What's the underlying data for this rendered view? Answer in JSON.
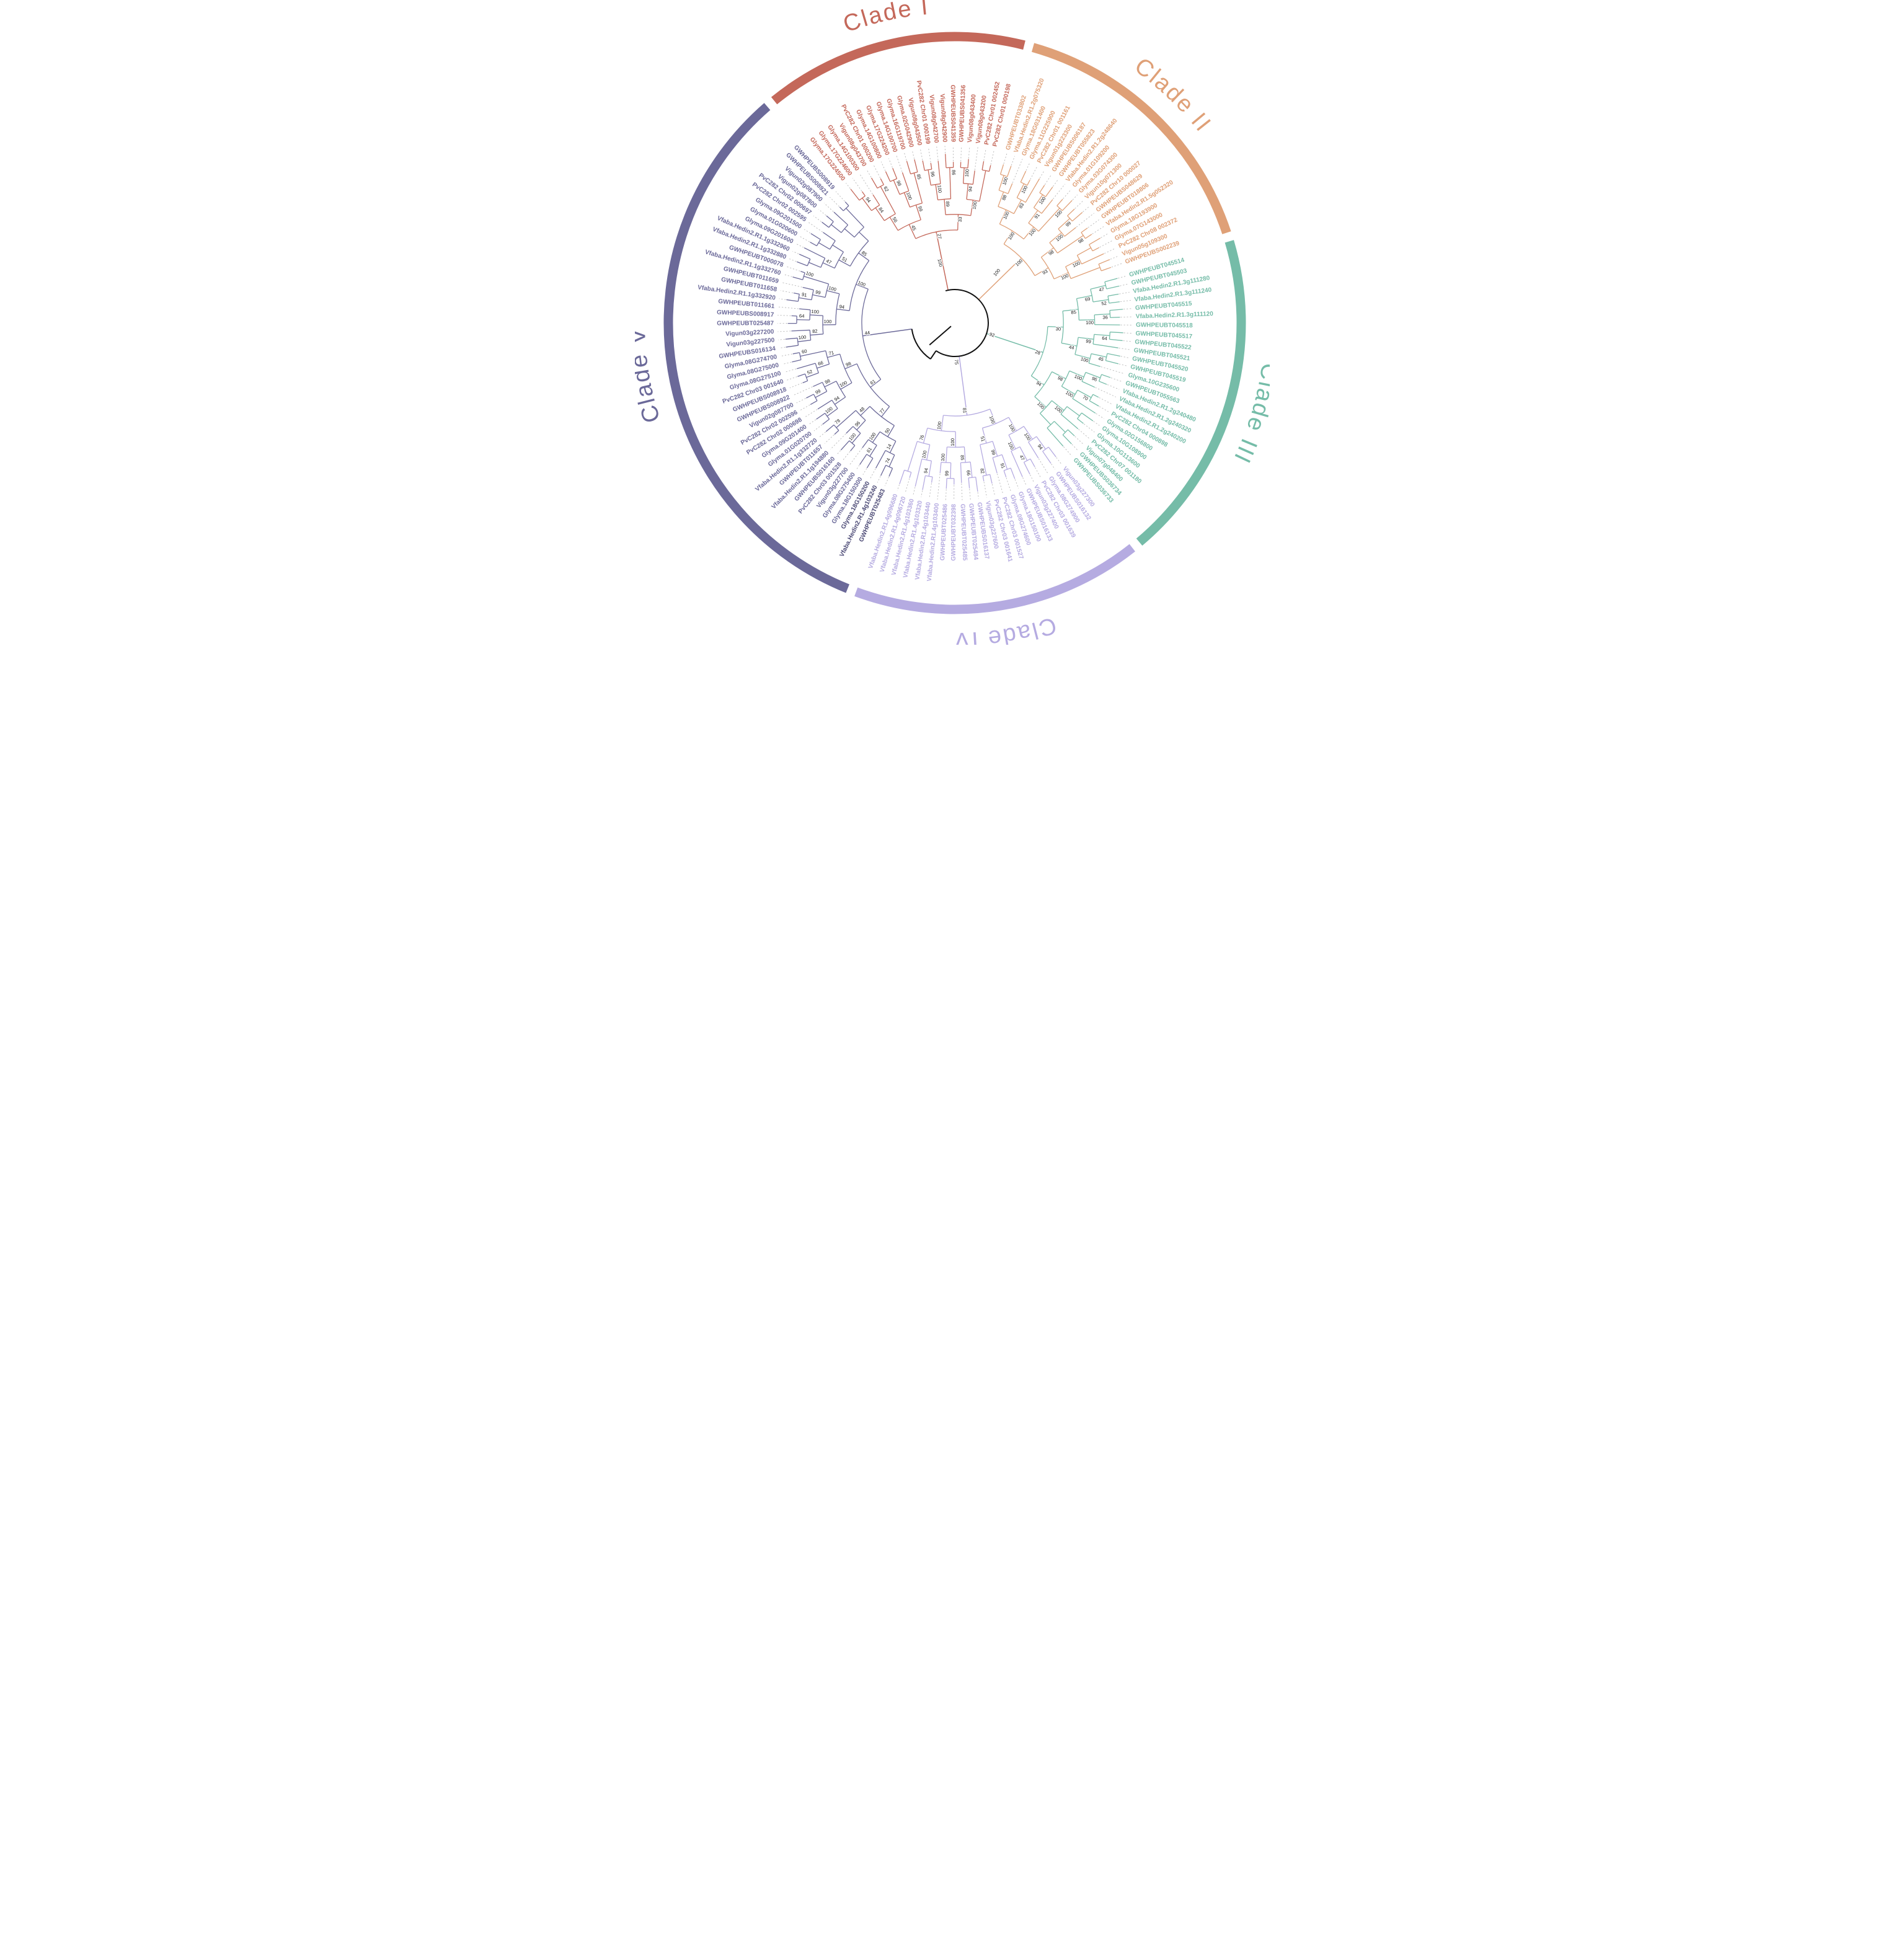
{
  "figure": {
    "type": "circular-phylogenetic-tree",
    "background": "#ffffff"
  },
  "chart_data": {
    "type": "circular_phylogram",
    "description": "Circular phylogenetic tree of PIN gene family members grouped into five clades with bootstrap support values",
    "leader_line_color": "#b9b9b9",
    "bootstrap_color": "#1a1a1a",
    "root_color": "#111111",
    "highlight_leaf_color": "#4b4975",
    "root_support_values": [
      {
        "value": "100",
        "angle": -14,
        "radius": 100
      },
      {
        "value": "100",
        "angle": 40,
        "radius": 106
      },
      {
        "value": "92",
        "angle": 108,
        "radius": 63
      },
      {
        "value": "75",
        "angle": 178,
        "radius": 63
      }
    ],
    "clades": [
      {
        "name": "Clade I",
        "color": "#C4685A",
        "bold_leaves": [],
        "leaves": [
          "Glyma.17G224500",
          "Glyma.17G224600",
          "Glyma.14G100300",
          "Vigun08g043700",
          "PvC282 Chr01 000200",
          "Glyma.14G100800",
          "Glyma.17G224200",
          "Glyma.14G100700",
          "Glyma.16G119700",
          "Glyma.02G042900",
          "Vigun08g043500",
          "PvC282 Chr01 000199",
          "Vigun08g042700",
          "Vigun08g042900",
          "GWHPEUBS041359",
          "GWHPEUBS041356",
          "Vigun08g043400",
          "Vigun08g043200",
          "PvC282 Chr01 002452",
          "PvC282 Chr01 000198"
        ],
        "bootstrap": [
          "27",
          "45",
          "56",
          "84",
          "94",
          "62",
          "99",
          "100",
          "98",
          "85",
          "33",
          "89",
          "100",
          "96",
          "86",
          "100",
          "94",
          "100"
        ]
      },
      {
        "name": "Clade II",
        "color": "#DFA077",
        "bold_leaves": [],
        "leaves": [
          "GWHPEUBT033802",
          "Vfaba.Hedin2.R1.2g075320",
          "Glyma.18G031400",
          "Glyma.11G225900",
          "PvC282 Chr01 001161",
          "Vigun01g223300",
          "GWHPEUBS006187",
          "GWHPEUBT055823",
          "Vfaba.Hedin2.R1.2g248640",
          "Glyma.01G109200",
          "Glyma.03G074300",
          "Vigun10g071300",
          "PvC282 Chr10 000027",
          "GWHPEUBS048629",
          "GWHPEUBT018806",
          "Vfaba.Hedin2.R1.5g052320",
          "Glyma.18G193900",
          "Glyma.07G143000",
          "PvC282 Chr08 002372",
          "Vigun05g109300",
          "GWHPEUBS002239"
        ],
        "bootstrap": [
          "100",
          "100",
          "100",
          "88",
          "100",
          "83",
          "100",
          "100",
          "91",
          "100",
          "100",
          "93",
          "98",
          "100",
          "99",
          "98",
          "100",
          "100"
        ]
      },
      {
        "name": "Clade III",
        "color": "#75BCA8",
        "bold_leaves": [],
        "leaves": [
          "GWHPEUBT045514",
          "GWHPEUBT045503",
          "Vfaba.Hedin2.R1.3g111280",
          "Vfaba.Hedin2.R1.3g111240",
          "GWHPEUBT045515",
          "Vfaba.Hedin2.R1.3g111120",
          "GWHPEUBT045518",
          "GWHPEUBT045517",
          "GWHPEUBT045522",
          "GWHPEUBT045521",
          "GWHPEUBT045520",
          "GWHPEUBT045519",
          "Glyma.10G235600",
          "GWHPEUBT055563",
          "Vfaba.Hedin2.R1.2g240480",
          "Vfaba.Hedin2.R1.2g240320",
          "Vfaba.Hedin2.R1.2g240200",
          "PvC282 Chr04 000898",
          "Glyma.02G156800",
          "Glyma.10G108900",
          "Glyma.10G113600",
          "PvC282 Chr07 001180",
          "Vigun07g048400",
          "GWHPEUBS036734",
          "GWHPEUBS036733"
        ],
        "bootstrap": [
          "28",
          "30",
          "85",
          "69",
          "47",
          "52",
          "100",
          "36",
          "44",
          "99",
          "64",
          "100",
          "45",
          "94",
          "98",
          "100",
          "96",
          "100",
          "70",
          "100",
          "100"
        ]
      },
      {
        "name": "Clade IV",
        "color": "#B5ABE1",
        "bold_leaves": [],
        "leaves": [
          "Vigun03g227300",
          "GWHPEUBS016132",
          "Glyma.08G274900",
          "PvC282 Chr03 001639",
          "Vigun03g227400",
          "GWHPEUBS016133",
          "Glyma.18G150100",
          "Glyma.08G274600",
          "PvC282 Chr03 001527",
          "PvC282 Chr03 001641",
          "Vigun03g227600",
          "GWHPEUBS016137",
          "GWHPEUBT025484",
          "GWHPEUBT025485",
          "GWHPEUBT032398",
          "GWHPEUBT025486",
          "Vfaba.Hedin2.R1.4g103400",
          "Vfaba.Hedin2.R1.4g103440",
          "Vfaba.Hedin2.R1.4g103320",
          "Vfaba.Hedin2.R1.4g103360",
          "Vfaba.Hedin2.R1.4g096720",
          "Vfaba.Hedin2.R1.4g096680"
        ],
        "bootstrap": [
          "81",
          "100",
          "100",
          "100",
          "94",
          "100",
          "47",
          "51",
          "99",
          "91",
          "82",
          "100",
          "100",
          "85",
          "66",
          "100",
          "99",
          "76",
          "100",
          "94"
        ]
      },
      {
        "name": "Clade V",
        "color": "#6B6999",
        "bold_leaves": [
          "GWHPEUBT025483",
          "Vfaba.Hedin2.R1.4g103240",
          "Glyma.18G150200"
        ],
        "leaves": [
          "GWHPEUBT025483",
          "Vfaba.Hedin2.R1.4g103240",
          "Glyma.18G150200",
          "Glyma.18G150300",
          "Glyma.08G275400",
          "Vigun03g227700",
          "PvC282 Chr03 001528",
          "GWHPEUBS016160",
          "Vfaba.Hedin2.R1.1g194880",
          "GWHPEUBT011657",
          "Vfaba.Hedin2.R1.1g332720",
          "Glyma.01G020700",
          "Glyma.09G201400",
          "PvC282 Chr02 000698",
          "PvC282 Chr02 002596",
          "Vigun02g087700",
          "GWHPEUBS008922",
          "GWHPEUBS008918",
          "PvC282 Chr03 001640",
          "Glyma.08G275100",
          "Glyma.08G275000",
          "Glyma.08G274700",
          "GWHPEUBS016134",
          "Vigun03g227500",
          "Vigun03g227200",
          "GWHPEUBT025487",
          "GWHPEUBS008917",
          "GWHPEUBT011661",
          "Vfaba.Hedin2.R1.1g332920",
          "GWHPEUBT011658",
          "GWHPEUBT011659",
          "Vfaba.Hedin2.R1.1g332760",
          "GWHPEUBT000078",
          "Vfaba.Hedin2.R1.1g332880",
          "Vfaba.Hedin2.R1.1g332960",
          "Glyma.09G201600",
          "Glyma.01G020600",
          "Glyma.09G201500",
          "PvC282 Chr02 002595",
          "PvC282 Chr02 000697",
          "Vigun02g087800",
          "Vigun02g087900",
          "GWHPEUBS008921",
          "GWHPEUBS008919"
        ],
        "bootstrap": [
          "44",
          "61",
          "77",
          "50",
          "14",
          "74",
          "100",
          "61",
          "48",
          "96",
          "100",
          "78",
          "98",
          "100",
          "94",
          "100",
          "98",
          "99",
          "71",
          "66",
          "52",
          "60",
          "100",
          "94",
          "100",
          "82",
          "100",
          "100",
          "64",
          "100",
          "99",
          "91",
          "100",
          "85",
          "51",
          "47"
        ]
      }
    ]
  }
}
